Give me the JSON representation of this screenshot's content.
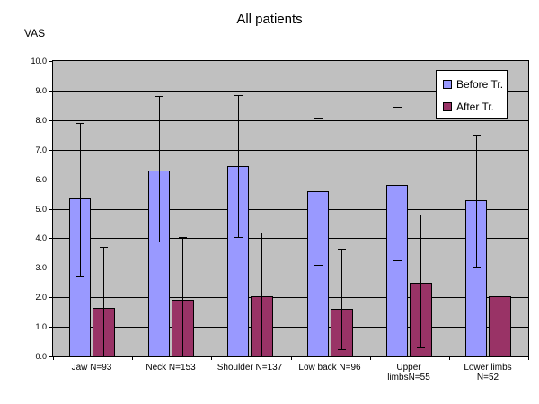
{
  "title": "All patients",
  "y_axis_unit": "VAS",
  "colors": {
    "before_bar": "#9999FF",
    "after_bar": "#993366",
    "plot_background": "#C0C0C0",
    "gridline": "#000000",
    "chart_background": "#FFFFFF"
  },
  "legend": {
    "position": "top-right",
    "items": [
      {
        "label": "Before Tr.",
        "color": "#9999FF"
      },
      {
        "label": "After Tr.",
        "color": "#993366"
      }
    ]
  },
  "chart_data": {
    "type": "bar",
    "title": "All patients",
    "ylabel": "VAS",
    "xlabel": "",
    "ylim": [
      0,
      10
    ],
    "ytick_step": 1.0,
    "yticks": [
      "0.0",
      "1.0",
      "2.0",
      "3.0",
      "4.0",
      "5.0",
      "6.0",
      "7.0",
      "8.0",
      "9.0",
      "10.0"
    ],
    "grid": true,
    "legend_position": "top-right",
    "categories": [
      "Jaw N=93",
      "Neck N=153",
      "Shoulder N=137",
      "Low back N=96",
      "Upper limbsN=55",
      "Lower limbs N=52"
    ],
    "category_label_lines": [
      [
        "Jaw N=93"
      ],
      [
        "Neck N=153"
      ],
      [
        "Shoulder N=137"
      ],
      [
        "Low back N=96"
      ],
      [
        "Upper",
        "limbsN=55"
      ],
      [
        "Lower limbs",
        "N=52"
      ]
    ],
    "series": [
      {
        "name": "Before Tr.",
        "color": "#9999FF",
        "values": [
          5.35,
          6.3,
          6.45,
          5.6,
          5.8,
          5.3
        ],
        "error_high": [
          7.9,
          8.8,
          8.85,
          8.1,
          8.45,
          7.5
        ],
        "error_low": [
          2.75,
          3.9,
          4.05,
          3.1,
          3.25,
          3.05
        ],
        "error_style": [
          "full",
          "full",
          "full",
          "caps-only",
          "caps-only",
          "full"
        ]
      },
      {
        "name": "After Tr.",
        "color": "#993366",
        "values": [
          1.65,
          1.9,
          2.05,
          1.6,
          2.5,
          2.05
        ],
        "error_high": [
          3.7,
          4.05,
          4.2,
          3.65,
          4.8,
          null
        ],
        "error_low": [
          0.0,
          0.0,
          0.0,
          0.25,
          0.3,
          null
        ],
        "error_style": [
          "line-top-cap",
          "line-top-cap",
          "line-top-cap",
          "full",
          "full",
          "none"
        ]
      }
    ]
  }
}
